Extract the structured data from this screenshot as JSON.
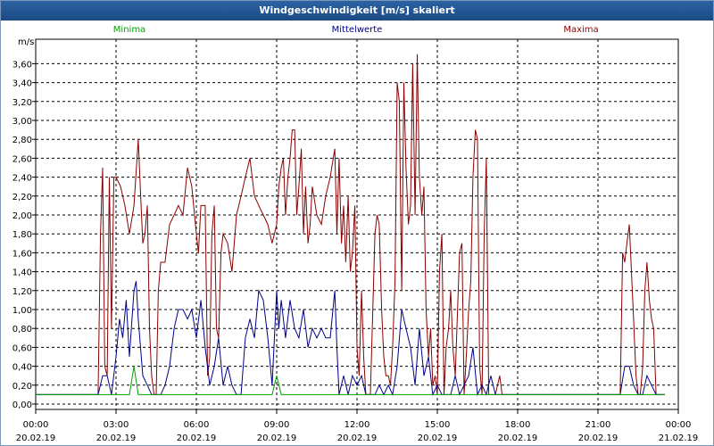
{
  "title": "Windgeschwindigkeit [m/s] skaliert",
  "chart_data": {
    "type": "line",
    "ylabel": "m/s",
    "ylim": [
      0,
      3.8
    ],
    "y_ticks": [
      "0,00",
      "0,20",
      "0,40",
      "0,60",
      "0,80",
      "1,00",
      "1,20",
      "1,40",
      "1,60",
      "1,80",
      "2,00",
      "2,20",
      "2,40",
      "2,60",
      "2,80",
      "3,00",
      "3,20",
      "3,40",
      "3,60"
    ],
    "x_ticks": [
      {
        "time": "00:00",
        "date": "20.02.19"
      },
      {
        "time": "03:00",
        "date": "20.02.19"
      },
      {
        "time": "06:00",
        "date": "20.02.19"
      },
      {
        "time": "09:00",
        "date": "20.02.19"
      },
      {
        "time": "12:00",
        "date": "20.02.19"
      },
      {
        "time": "15:00",
        "date": "20.02.19"
      },
      {
        "time": "18:00",
        "date": "20.02.19"
      },
      {
        "time": "21:00",
        "date": "20.02.19"
      },
      {
        "time": "00:00",
        "date": "21.02.19"
      }
    ],
    "xlim_hours": [
      0,
      24
    ],
    "grid": true,
    "series": [
      {
        "name": "Minima",
        "color": "#00a000",
        "points": [
          [
            0,
            0.1
          ],
          [
            3.5,
            0.1
          ],
          [
            3.67,
            0.4
          ],
          [
            3.83,
            0.1
          ],
          [
            8.83,
            0.1
          ],
          [
            9.0,
            0.3
          ],
          [
            9.17,
            0.1
          ],
          [
            23.5,
            0.1
          ]
        ]
      },
      {
        "name": "Mittelwerte",
        "color": "#00008b",
        "points": [
          [
            0,
            0.1
          ],
          [
            2.33,
            0.1
          ],
          [
            2.5,
            0.3
          ],
          [
            2.67,
            0.3
          ],
          [
            2.83,
            0.1
          ],
          [
            3.0,
            0.5
          ],
          [
            3.13,
            0.9
          ],
          [
            3.25,
            0.7
          ],
          [
            3.38,
            1.1
          ],
          [
            3.5,
            0.5
          ],
          [
            3.67,
            1.2
          ],
          [
            3.75,
            1.3
          ],
          [
            3.83,
            0.9
          ],
          [
            4.0,
            0.3
          ],
          [
            4.17,
            0.2
          ],
          [
            4.33,
            0.1
          ],
          [
            4.5,
            0.1
          ],
          [
            4.67,
            0.1
          ],
          [
            4.83,
            0.2
          ],
          [
            5.0,
            0.4
          ],
          [
            5.17,
            0.8
          ],
          [
            5.33,
            1.0
          ],
          [
            5.5,
            1.0
          ],
          [
            5.67,
            0.9
          ],
          [
            5.83,
            1.0
          ],
          [
            6.0,
            0.7
          ],
          [
            6.17,
            1.1
          ],
          [
            6.33,
            0.6
          ],
          [
            6.5,
            0.2
          ],
          [
            6.67,
            0.4
          ],
          [
            6.83,
            0.7
          ],
          [
            7.0,
            0.2
          ],
          [
            7.17,
            0.4
          ],
          [
            7.33,
            0.2
          ],
          [
            7.5,
            0.1
          ],
          [
            7.67,
            0.1
          ],
          [
            7.83,
            0.7
          ],
          [
            8.0,
            0.9
          ],
          [
            8.17,
            0.7
          ],
          [
            8.33,
            1.2
          ],
          [
            8.5,
            1.1
          ],
          [
            8.67,
            0.7
          ],
          [
            8.83,
            0.2
          ],
          [
            9.0,
            1.2
          ],
          [
            9.08,
            0.8
          ],
          [
            9.17,
            1.1
          ],
          [
            9.33,
            0.7
          ],
          [
            9.5,
            1.1
          ],
          [
            9.67,
            0.8
          ],
          [
            9.83,
            0.7
          ],
          [
            10.0,
            1.0
          ],
          [
            10.17,
            0.6
          ],
          [
            10.33,
            0.8
          ],
          [
            10.5,
            0.7
          ],
          [
            10.67,
            0.8
          ],
          [
            10.83,
            0.7
          ],
          [
            11.0,
            0.7
          ],
          [
            11.17,
            1.2
          ],
          [
            11.25,
            0.6
          ],
          [
            11.33,
            0.1
          ],
          [
            11.5,
            0.3
          ],
          [
            11.67,
            0.1
          ],
          [
            11.83,
            0.3
          ],
          [
            12.0,
            0.2
          ],
          [
            12.17,
            0.3
          ],
          [
            12.33,
            0.1
          ],
          [
            12.67,
            0.1
          ],
          [
            12.83,
            0.2
          ],
          [
            13.0,
            0.1
          ],
          [
            13.17,
            0.2
          ],
          [
            13.33,
            0.1
          ],
          [
            13.5,
            0.4
          ],
          [
            13.67,
            1.0
          ],
          [
            13.83,
            0.8
          ],
          [
            14.0,
            0.6
          ],
          [
            14.17,
            0.2
          ],
          [
            14.33,
            0.8
          ],
          [
            14.5,
            0.3
          ],
          [
            14.67,
            0.5
          ],
          [
            14.83,
            0.1
          ],
          [
            15.0,
            0.2
          ],
          [
            15.17,
            0.1
          ],
          [
            15.33,
            0.1
          ],
          [
            15.5,
            0.1
          ],
          [
            15.67,
            0.3
          ],
          [
            15.83,
            0.1
          ],
          [
            16.0,
            0.2
          ],
          [
            16.17,
            0.3
          ],
          [
            16.33,
            0.6
          ],
          [
            16.5,
            0.1
          ],
          [
            16.67,
            0.2
          ],
          [
            16.83,
            0.1
          ],
          [
            17.0,
            0.3
          ],
          [
            17.17,
            0.1
          ],
          [
            21.83,
            0.1
          ],
          [
            22.0,
            0.4
          ],
          [
            22.17,
            0.4
          ],
          [
            22.33,
            0.2
          ],
          [
            22.5,
            0.1
          ],
          [
            22.67,
            0.1
          ],
          [
            22.83,
            0.3
          ],
          [
            23.0,
            0.2
          ],
          [
            23.17,
            0.1
          ],
          [
            23.5,
            0.1
          ]
        ]
      },
      {
        "name": "Maxima",
        "color": "#8b0000",
        "points": [
          [
            0,
            0.1
          ],
          [
            2.33,
            0.1
          ],
          [
            2.42,
            1.8
          ],
          [
            2.5,
            2.5
          ],
          [
            2.58,
            0.4
          ],
          [
            2.67,
            0.3
          ],
          [
            2.75,
            2.4
          ],
          [
            2.83,
            0.8
          ],
          [
            2.92,
            2.4
          ],
          [
            3.0,
            2.4
          ],
          [
            3.17,
            2.3
          ],
          [
            3.33,
            2.1
          ],
          [
            3.5,
            1.8
          ],
          [
            3.67,
            2.1
          ],
          [
            3.83,
            2.8
          ],
          [
            3.92,
            2.2
          ],
          [
            4.0,
            1.7
          ],
          [
            4.08,
            1.8
          ],
          [
            4.17,
            2.1
          ],
          [
            4.25,
            0.8
          ],
          [
            4.33,
            0.3
          ],
          [
            4.42,
            0.1
          ],
          [
            4.5,
            0.1
          ],
          [
            4.58,
            1.2
          ],
          [
            4.67,
            1.5
          ],
          [
            4.83,
            1.5
          ],
          [
            5.0,
            1.9
          ],
          [
            5.17,
            2.0
          ],
          [
            5.33,
            2.1
          ],
          [
            5.5,
            2.0
          ],
          [
            5.67,
            2.5
          ],
          [
            5.83,
            2.3
          ],
          [
            6.0,
            1.8
          ],
          [
            6.08,
            1.6
          ],
          [
            6.17,
            2.1
          ],
          [
            6.33,
            2.1
          ],
          [
            6.42,
            0.3
          ],
          [
            6.5,
            0.5
          ],
          [
            6.58,
            1.8
          ],
          [
            6.67,
            2.1
          ],
          [
            6.75,
            0.8
          ],
          [
            6.83,
            0.7
          ],
          [
            6.92,
            1.6
          ],
          [
            7.0,
            1.8
          ],
          [
            7.17,
            1.7
          ],
          [
            7.33,
            1.4
          ],
          [
            7.5,
            2.0
          ],
          [
            7.67,
            2.2
          ],
          [
            7.83,
            2.4
          ],
          [
            8.0,
            2.6
          ],
          [
            8.17,
            2.2
          ],
          [
            8.33,
            2.1
          ],
          [
            8.5,
            2.0
          ],
          [
            8.67,
            1.9
          ],
          [
            8.83,
            1.7
          ],
          [
            9.0,
            1.9
          ],
          [
            9.08,
            2.3
          ],
          [
            9.17,
            2.5
          ],
          [
            9.25,
            2.6
          ],
          [
            9.33,
            2.0
          ],
          [
            9.42,
            2.4
          ],
          [
            9.5,
            2.6
          ],
          [
            9.58,
            2.9
          ],
          [
            9.67,
            2.9
          ],
          [
            9.75,
            2.0
          ],
          [
            9.83,
            2.3
          ],
          [
            9.92,
            2.7
          ],
          [
            10.0,
            1.8
          ],
          [
            10.08,
            2.3
          ],
          [
            10.17,
            1.7
          ],
          [
            10.25,
            1.9
          ],
          [
            10.33,
            2.3
          ],
          [
            10.5,
            2.0
          ],
          [
            10.67,
            1.9
          ],
          [
            10.83,
            2.2
          ],
          [
            11.0,
            2.4
          ],
          [
            11.17,
            2.7
          ],
          [
            11.25,
            1.8
          ],
          [
            11.33,
            2.6
          ],
          [
            11.42,
            1.7
          ],
          [
            11.5,
            2.1
          ],
          [
            11.58,
            1.5
          ],
          [
            11.67,
            2.2
          ],
          [
            11.75,
            1.4
          ],
          [
            11.83,
            1.6
          ],
          [
            11.92,
            2.1
          ],
          [
            12.0,
            0.6
          ],
          [
            12.08,
            0.3
          ],
          [
            12.17,
            1.2
          ],
          [
            12.25,
            0.5
          ],
          [
            12.33,
            0.1
          ],
          [
            12.5,
            0.1
          ],
          [
            12.67,
            1.8
          ],
          [
            12.75,
            2.0
          ],
          [
            12.83,
            1.9
          ],
          [
            12.92,
            1.0
          ],
          [
            13.0,
            0.5
          ],
          [
            13.08,
            0.3
          ],
          [
            13.17,
            0.3
          ],
          [
            13.25,
            0.2
          ],
          [
            13.33,
            0.6
          ],
          [
            13.42,
            1.3
          ],
          [
            13.5,
            3.4
          ],
          [
            13.58,
            3.2
          ],
          [
            13.67,
            1.2
          ],
          [
            13.75,
            3.4
          ],
          [
            13.83,
            2.5
          ],
          [
            13.92,
            1.9
          ],
          [
            14.0,
            2.1
          ],
          [
            14.08,
            3.6
          ],
          [
            14.17,
            2.0
          ],
          [
            14.25,
            3.7
          ],
          [
            14.33,
            2.4
          ],
          [
            14.42,
            2.0
          ],
          [
            14.5,
            2.3
          ],
          [
            14.58,
            1.0
          ],
          [
            14.67,
            0.5
          ],
          [
            14.75,
            0.8
          ],
          [
            14.83,
            0.2
          ],
          [
            14.92,
            0.3
          ],
          [
            15.0,
            0.1
          ],
          [
            15.08,
            1.4
          ],
          [
            15.17,
            1.8
          ],
          [
            15.25,
            0.1
          ],
          [
            15.33,
            0.6
          ],
          [
            15.42,
            0.8
          ],
          [
            15.5,
            1.2
          ],
          [
            15.58,
            0.6
          ],
          [
            15.67,
            0.3
          ],
          [
            15.83,
            1.6
          ],
          [
            15.92,
            1.7
          ],
          [
            16.0,
            0.1
          ],
          [
            16.08,
            0.5
          ],
          [
            16.17,
            1.0
          ],
          [
            16.25,
            1.3
          ],
          [
            16.33,
            2.4
          ],
          [
            16.42,
            2.9
          ],
          [
            16.5,
            2.8
          ],
          [
            16.58,
            0.4
          ],
          [
            16.67,
            0.1
          ],
          [
            16.75,
            1.8
          ],
          [
            16.83,
            2.6
          ],
          [
            16.92,
            0.1
          ],
          [
            17.0,
            0.1
          ],
          [
            17.17,
            0.1
          ],
          [
            17.33,
            0.3
          ],
          [
            17.42,
            0.1
          ],
          [
            21.83,
            0.1
          ],
          [
            21.92,
            1.6
          ],
          [
            22.0,
            1.5
          ],
          [
            22.08,
            1.7
          ],
          [
            22.17,
            1.9
          ],
          [
            22.25,
            1.4
          ],
          [
            22.33,
            0.9
          ],
          [
            22.42,
            0.3
          ],
          [
            22.5,
            0.1
          ],
          [
            22.58,
            0.1
          ],
          [
            22.67,
            0.4
          ],
          [
            22.75,
            1.2
          ],
          [
            22.83,
            1.5
          ],
          [
            22.92,
            1.1
          ],
          [
            23.0,
            0.9
          ],
          [
            23.08,
            0.8
          ],
          [
            23.17,
            0.1
          ],
          [
            23.5,
            0.1
          ]
        ]
      }
    ]
  }
}
